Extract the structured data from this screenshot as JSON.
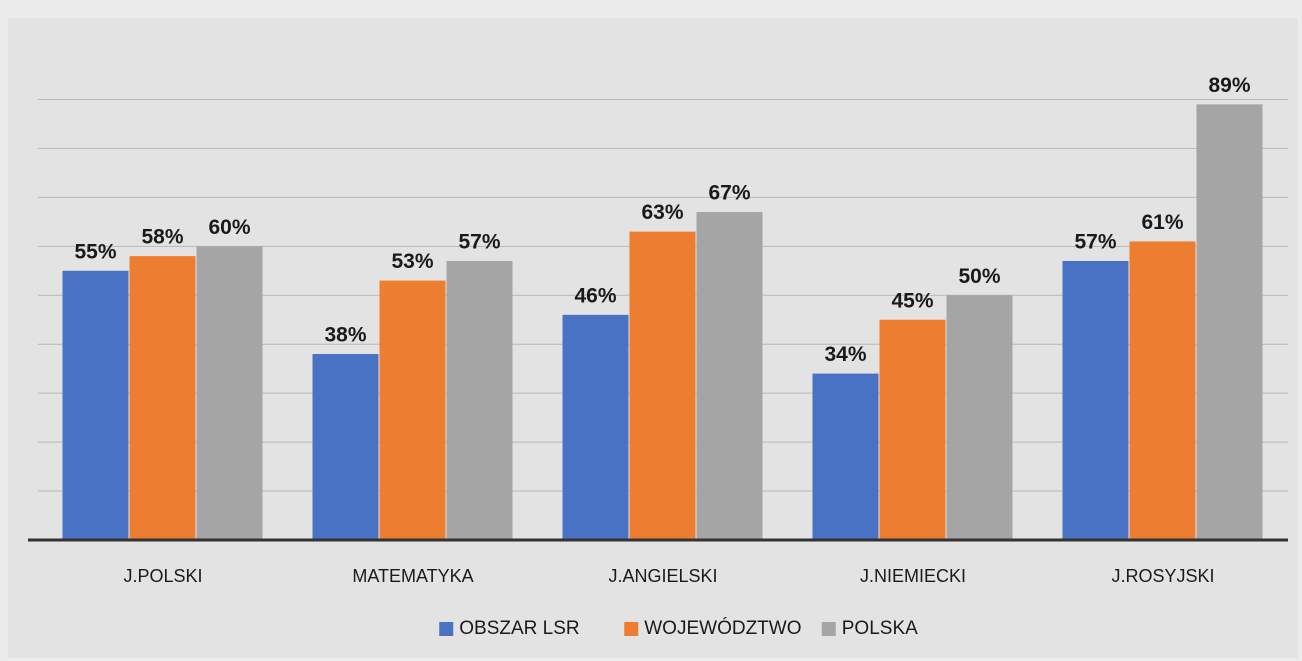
{
  "chart_data": {
    "type": "bar",
    "categories": [
      "J.POLSKI",
      "MATEMATYKA",
      "J.ANGIELSKI",
      "J.NIEMIECKI",
      "J.ROSYJSKI"
    ],
    "series": [
      {
        "name": "OBSZAR LSR",
        "color": "#4a72c4",
        "values": [
          55,
          38,
          46,
          34,
          57
        ],
        "value_labels": [
          "55%",
          "38%",
          "46%",
          "34%",
          "57%"
        ]
      },
      {
        "name": "WOJEWÓDZTWO",
        "color": "#ed7d31",
        "values": [
          58,
          53,
          63,
          45,
          61
        ],
        "value_labels": [
          "58%",
          "53%",
          "63%",
          "45%",
          "61%"
        ]
      },
      {
        "name": "POLSKA",
        "color": "#a5a5a5",
        "values": [
          60,
          57,
          67,
          50,
          89
        ],
        "value_labels": [
          "60%",
          "57%",
          "67%",
          "50%",
          "89%"
        ]
      }
    ],
    "ylim": [
      0,
      95
    ],
    "yticks": [
      0,
      10,
      20,
      30,
      40,
      50,
      60,
      70,
      80,
      90
    ],
    "grid": true,
    "legend": "bottom"
  }
}
